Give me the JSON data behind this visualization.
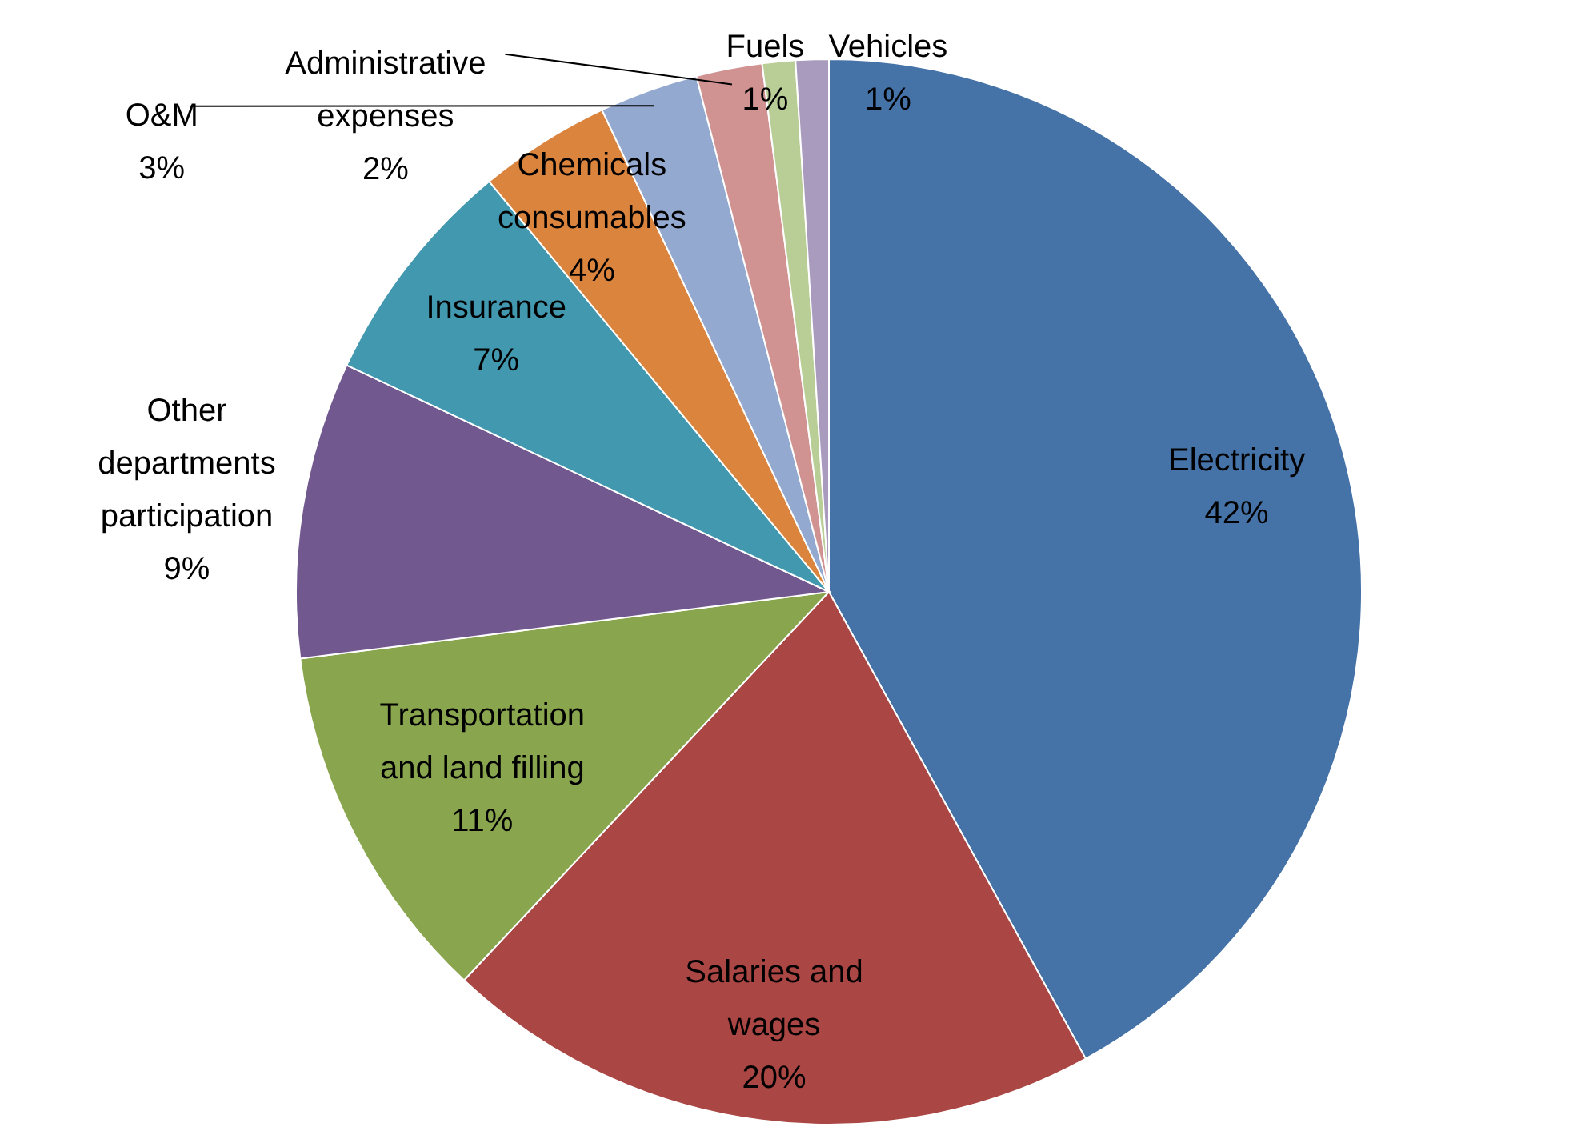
{
  "chart_data": {
    "type": "pie",
    "categories": [
      "Electricity",
      "Salaries and wages",
      "Transportation and land filling",
      "Other departments participation",
      "Insurance",
      "Chemicals consumables",
      "O&M",
      "Administrative expenses",
      "Fuels",
      "Vehicles"
    ],
    "values": [
      42,
      20,
      11,
      9,
      7,
      4,
      3,
      2,
      1,
      1
    ],
    "value_labels": [
      "42%",
      "20%",
      "11%",
      "9%",
      "7%",
      "4%",
      "3%",
      "2%",
      "1%",
      "1%"
    ],
    "colors": [
      "#4572a7",
      "#aa4643",
      "#89a54e",
      "#71588f",
      "#4198af",
      "#db843d",
      "#93a9cf",
      "#d19392",
      "#b9cd96",
      "#a99bbd"
    ]
  }
}
